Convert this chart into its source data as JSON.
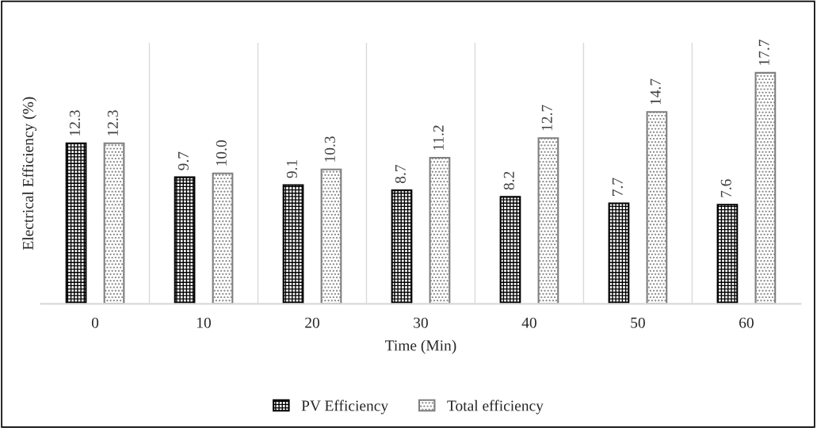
{
  "chart_data": {
    "type": "bar",
    "xlabel": "Time (Min)",
    "ylabel": "Electrical Efficiency (%)",
    "categories": [
      "0",
      "10",
      "20",
      "30",
      "40",
      "50",
      "60"
    ],
    "series": [
      {
        "name": "PV Efficiency",
        "color": "#000000",
        "values": [
          12.3,
          9.7,
          9.1,
          8.7,
          8.2,
          7.7,
          7.6
        ],
        "value_labels": [
          "12.3",
          "9.7",
          "9.1",
          "8.7",
          "8.2",
          "7.7",
          "7.6"
        ]
      },
      {
        "name": "Total efficiency",
        "color": "#7f7f7f",
        "values": [
          12.3,
          10.0,
          10.3,
          11.2,
          12.7,
          14.7,
          17.7
        ],
        "value_labels": [
          "12.3",
          "10.0",
          "10.3",
          "11.2",
          "12.7",
          "14.7",
          "17.7"
        ]
      }
    ],
    "ylim": [
      0,
      20
    ],
    "grid": "x",
    "legend": "bottom"
  }
}
